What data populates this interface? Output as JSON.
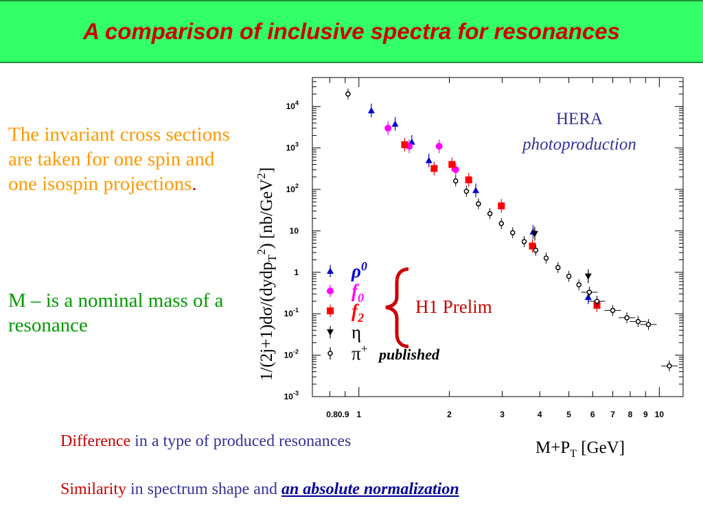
{
  "slide": {
    "title": "A comparison of inclusive spectra for  resonances",
    "left_text_1": "The invariant cross sections are taken for one spin and one isospin projections",
    "left_text_1_period": ".",
    "left_text_2": "M – is a nominal mass of a resonance",
    "difference_word": "Difference",
    "difference_rest": " in a type of produced resonances",
    "similarity_word": "Similarity",
    "similarity_rest": " in spectrum shape and ",
    "similarity_emph": "an absolute normalization"
  },
  "chart_data": {
    "type": "scatter",
    "title": "",
    "xlabel": "M+P",
    "xlabel_sub": "T",
    "xlabel_unit": " [GeV]",
    "ylabel": "1/(2j+1)dσ/(dydpᵀ²) [nb/GeV²]",
    "x_scale": "log",
    "y_scale": "log",
    "xlim": [
      0.7,
      12
    ],
    "ylim": [
      0.001,
      50000
    ],
    "x_tick_labels": [
      "0.8",
      "0.9",
      "1",
      "2",
      "3",
      "4",
      "5",
      "6",
      "7",
      "8",
      "9",
      "10"
    ],
    "x_tick_values": [
      0.8,
      0.9,
      1,
      2,
      3,
      4,
      5,
      6,
      7,
      8,
      9,
      10
    ],
    "y_tick_labels": [
      "10^-3",
      "10^-2",
      "10^-1",
      "1",
      "10",
      "10^2",
      "10^3",
      "10^4"
    ],
    "y_tick_values": [
      0.001,
      0.01,
      0.1,
      1,
      10,
      100,
      1000,
      10000
    ],
    "annotation_hera": "HERA",
    "annotation_photo": "photoproduction",
    "annotation_h1": "H1 Prelim",
    "annotation_published": "published",
    "series": [
      {
        "name": "ρ",
        "name_sup": "0",
        "color": "#0000cc",
        "marker": "triangle-up",
        "points": [
          [
            1.1,
            8000
          ],
          [
            1.32,
            3800
          ],
          [
            1.5,
            1400
          ],
          [
            1.71,
            500
          ],
          [
            2.45,
            95
          ],
          [
            3.8,
            9.5
          ],
          [
            5.8,
            0.25
          ]
        ]
      },
      {
        "name": "f",
        "name_sub": "0",
        "color": "#ff00ff",
        "marker": "circle",
        "points": [
          [
            1.25,
            3000
          ],
          [
            1.47,
            1100
          ],
          [
            1.85,
            1100
          ],
          [
            2.1,
            300
          ]
        ]
      },
      {
        "name": "f",
        "name_sub": "2",
        "color": "#ff0000",
        "marker": "square",
        "points": [
          [
            1.42,
            1200
          ],
          [
            1.78,
            320
          ],
          [
            2.04,
            400
          ],
          [
            2.32,
            170
          ],
          [
            2.98,
            40
          ],
          [
            3.78,
            4.3
          ],
          [
            6.2,
            0.16
          ]
        ]
      },
      {
        "name": "η",
        "color": "#000000",
        "marker": "triangle-down",
        "points": [
          [
            3.85,
            8.5
          ],
          [
            5.8,
            0.8
          ]
        ]
      },
      {
        "name": "π",
        "name_sup": "+",
        "color": "#000000",
        "marker": "open-circle",
        "points": [
          [
            0.92,
            20000
          ],
          [
            2.1,
            160
          ],
          [
            2.28,
            90
          ],
          [
            2.5,
            45
          ],
          [
            2.73,
            26
          ],
          [
            2.98,
            15
          ],
          [
            3.25,
            9
          ],
          [
            3.55,
            5.5
          ],
          [
            3.88,
            3.4
          ],
          [
            4.2,
            2.2
          ],
          [
            4.6,
            1.3
          ],
          [
            5.0,
            0.8
          ],
          [
            5.4,
            0.5
          ],
          [
            5.85,
            0.33
          ],
          [
            6.2,
            0.2
          ],
          [
            7.0,
            0.12
          ],
          [
            7.8,
            0.08
          ],
          [
            8.5,
            0.065
          ],
          [
            9.2,
            0.055
          ],
          [
            10.8,
            0.0055
          ]
        ]
      }
    ]
  }
}
